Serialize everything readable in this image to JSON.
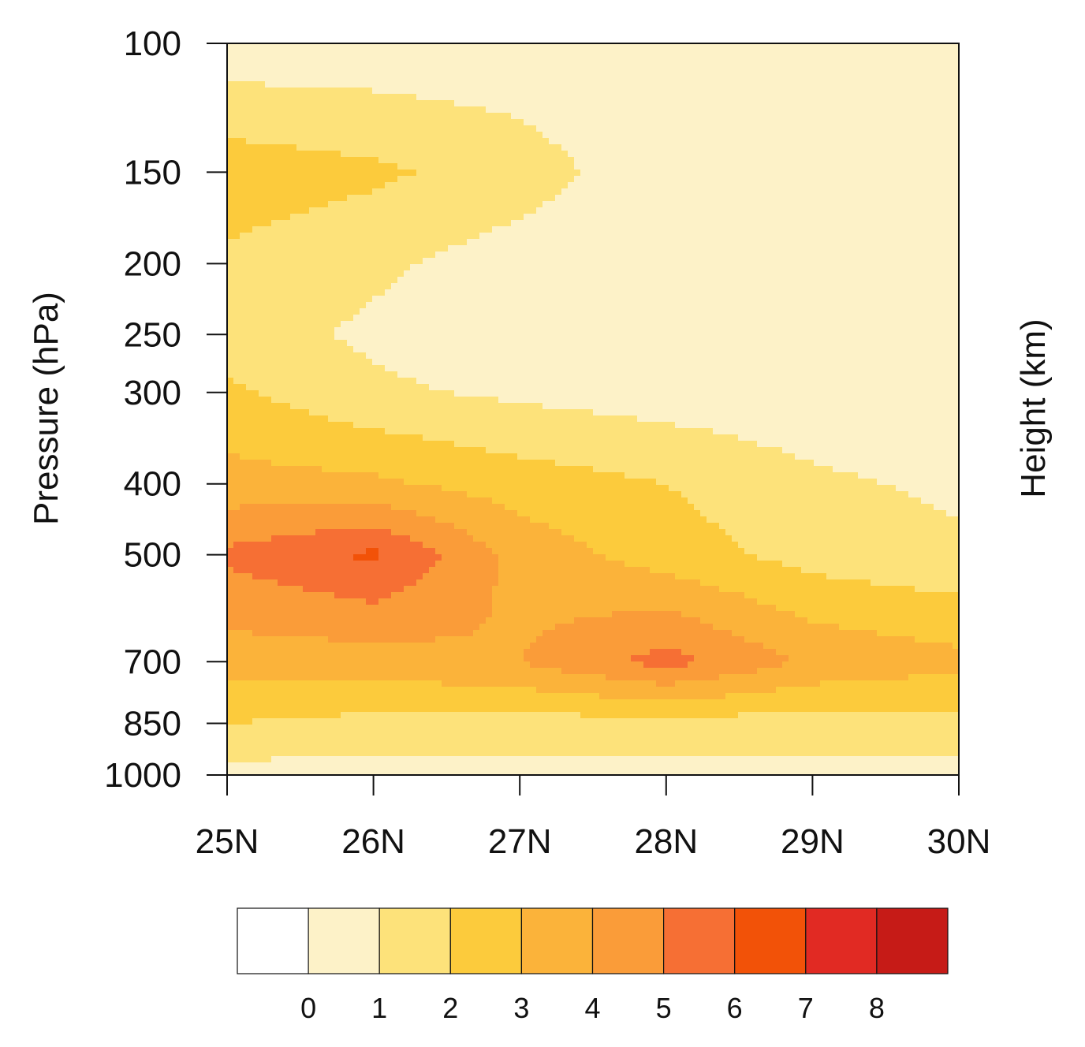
{
  "chart_data": {
    "type": "heatmap",
    "ylabel": "Pressure (hPa)",
    "ylabel_right": "Height (km)",
    "x_ticks": [
      "25N",
      "26N",
      "27N",
      "28N",
      "29N",
      "30N"
    ],
    "x_range": [
      25,
      30
    ],
    "y_ticks": [
      "100",
      "150",
      "200",
      "250",
      "300",
      "400",
      "500",
      "700",
      "850",
      "1000"
    ],
    "y_range": [
      100,
      1000
    ],
    "y_scale": "log",
    "colorbar": {
      "levels": [
        "0",
        "1",
        "2",
        "3",
        "4",
        "5",
        "6",
        "7",
        "8"
      ],
      "colors": [
        "#ffffff",
        "#fdf2c8",
        "#fde27a",
        "#fccb3c",
        "#fbb33a",
        "#fa9c39",
        "#f66f34",
        "#f25208",
        "#e12a23",
        "#c61b17"
      ]
    },
    "lat": [
      25,
      26,
      27,
      28,
      29,
      30
    ],
    "pressure": [
      100,
      150,
      200,
      250,
      300,
      400,
      500,
      700,
      850,
      1000
    ],
    "values": [
      [
        0.3,
        0.3,
        0.3,
        0.1,
        0.1,
        0.0
      ],
      [
        2.6,
        2.2,
        1.5,
        0.3,
        0.3,
        0.3
      ],
      [
        1.8,
        1.2,
        0.5,
        0.2,
        0.2,
        0.0
      ],
      [
        1.5,
        0.8,
        0.3,
        0.2,
        0.2,
        0.0
      ],
      [
        2.2,
        1.2,
        0.8,
        0.5,
        0.3,
        0.0
      ],
      [
        3.4,
        3.2,
        2.5,
        2.0,
        1.2,
        0.8
      ],
      [
        5.2,
        6.2,
        3.6,
        2.5,
        1.6,
        1.2
      ],
      [
        3.5,
        3.5,
        4.0,
        5.4,
        3.8,
        3.3
      ],
      [
        2.0,
        1.7,
        1.6,
        1.6,
        1.6,
        1.6
      ],
      [
        0.6,
        0.6,
        0.6,
        0.6,
        0.6,
        0.6
      ]
    ]
  }
}
